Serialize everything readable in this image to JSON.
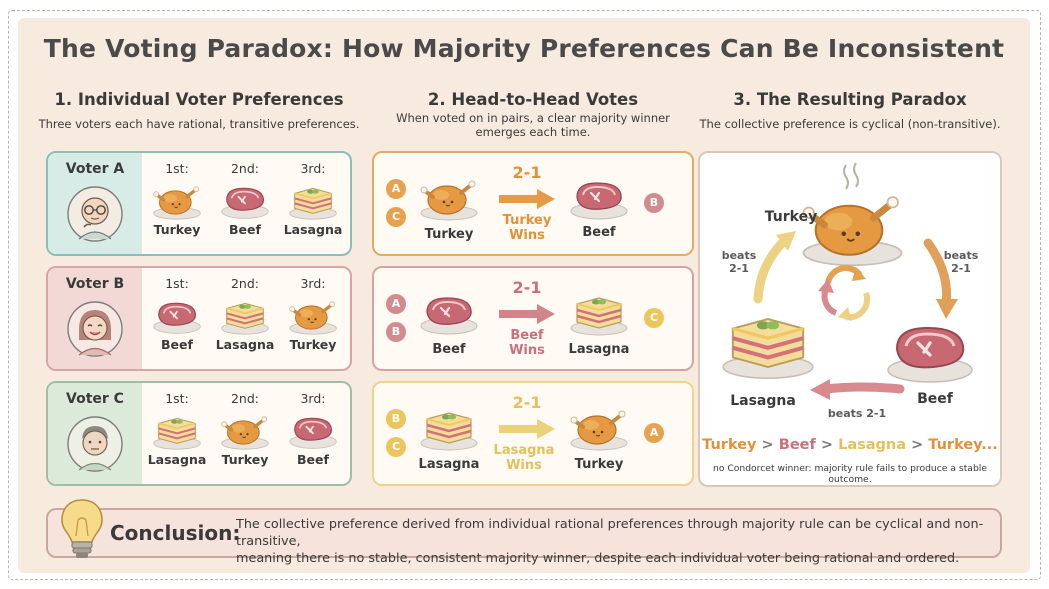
{
  "title": "The Voting Paradox: How Majority Preferences Can Be Inconsistent",
  "section1": {
    "heading": "1. Individual Voter Preferences",
    "subtitle": "Three voters each have rational, transitive preferences.",
    "rank_labels": [
      "1st:",
      "2nd:",
      "3rd:"
    ],
    "voters": [
      {
        "name": "Voter A",
        "prefs": [
          "Turkey",
          "Beef",
          "Lasagna"
        ]
      },
      {
        "name": "Voter B",
        "prefs": [
          "Beef",
          "Lasagna",
          "Turkey"
        ]
      },
      {
        "name": "Voter C",
        "prefs": [
          "Lasagna",
          "Turkey",
          "Beef"
        ]
      }
    ]
  },
  "section2": {
    "heading": "2. Head-to-Head Votes",
    "subtitle_line1": "When voted on in pairs, a clear majority winner",
    "subtitle_line2": "emerges each time.",
    "matchups": [
      {
        "left": "Turkey",
        "right": "Beef",
        "score": "2-1",
        "wins_line1": "Turkey",
        "wins_line2": "Wins",
        "left_voters": [
          "A",
          "C"
        ],
        "right_voters": [
          "B"
        ]
      },
      {
        "left": "Beef",
        "right": "Lasagna",
        "score": "2-1",
        "wins_line1": "Beef",
        "wins_line2": "Wins",
        "left_voters": [
          "A",
          "B"
        ],
        "right_voters": [
          "C"
        ]
      },
      {
        "left": "Lasagna",
        "right": "Turkey",
        "score": "2-1",
        "wins_line1": "Lasagna",
        "wins_line2": "Wins",
        "left_voters": [
          "B",
          "C"
        ],
        "right_voters": [
          "A"
        ]
      }
    ]
  },
  "section3": {
    "heading": "3. The Resulting Paradox",
    "subtitle": "The collective preference is cyclical (non-transitive).",
    "nodes": {
      "top": "Turkey",
      "right": "Beef",
      "left": "Lasagna"
    },
    "beats_label": "beats",
    "beats_score": "2-1",
    "beats_bottom": "beats 2-1",
    "order": {
      "turkey": "Turkey",
      "gt": ">",
      "beef": "Beef",
      "lasagna": "Lasagna",
      "turkey2": "Turkey..."
    },
    "note": "no Condorcet winner: majority rule fails to produce a stable outcome."
  },
  "conclusion": {
    "label": "Conclusion:",
    "line1": "The collective preference derived from individual rational preferences through majority rule can be cyclical and non-transitive,",
    "line2": "meaning there is no stable, consistent majority winner, despite each individual voter being rational and ordered."
  },
  "colors": {
    "voterA": "#7fb2ad",
    "voterB": "#d49b9b",
    "voterC": "#93b39a",
    "turkey_orange": "#e39a3b",
    "beef_red": "#c9707a",
    "lasagna_yellow": "#e7c766",
    "card1_border": "#e0a75a",
    "card2_border": "#d39b9b",
    "card3_border": "#ead27b"
  }
}
